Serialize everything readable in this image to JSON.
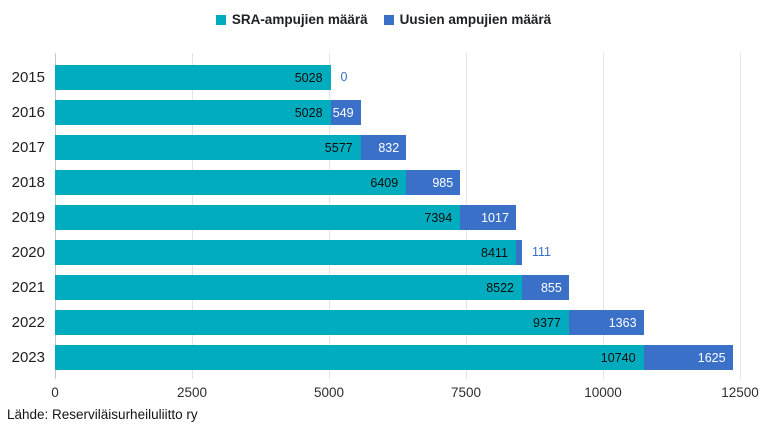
{
  "chart_data": {
    "type": "bar",
    "orientation": "horizontal",
    "stacked": true,
    "title": "",
    "categories": [
      "2015",
      "2016",
      "2017",
      "2018",
      "2019",
      "2020",
      "2021",
      "2022",
      "2023"
    ],
    "series": [
      {
        "name": "SRA-ampujien määrä",
        "color": "#00ACBE",
        "label_color": "#0d0d0d",
        "values": [
          5028,
          5028,
          5577,
          6409,
          7394,
          8411,
          8522,
          9377,
          10740
        ]
      },
      {
        "name": "Uusien ampujien määrä",
        "color": "#3A70C8",
        "label_color": "#ffffff",
        "values": [
          0,
          549,
          832,
          985,
          1017,
          111,
          855,
          1363,
          1625
        ]
      }
    ],
    "xlim": [
      0,
      12500
    ],
    "xticks": [
      0,
      2500,
      5000,
      7500,
      10000,
      12500
    ],
    "grid": "vertical",
    "legend_position": "top",
    "value_labels": true,
    "source": "Lähde: Reserviläisurheiluliitto ry"
  }
}
